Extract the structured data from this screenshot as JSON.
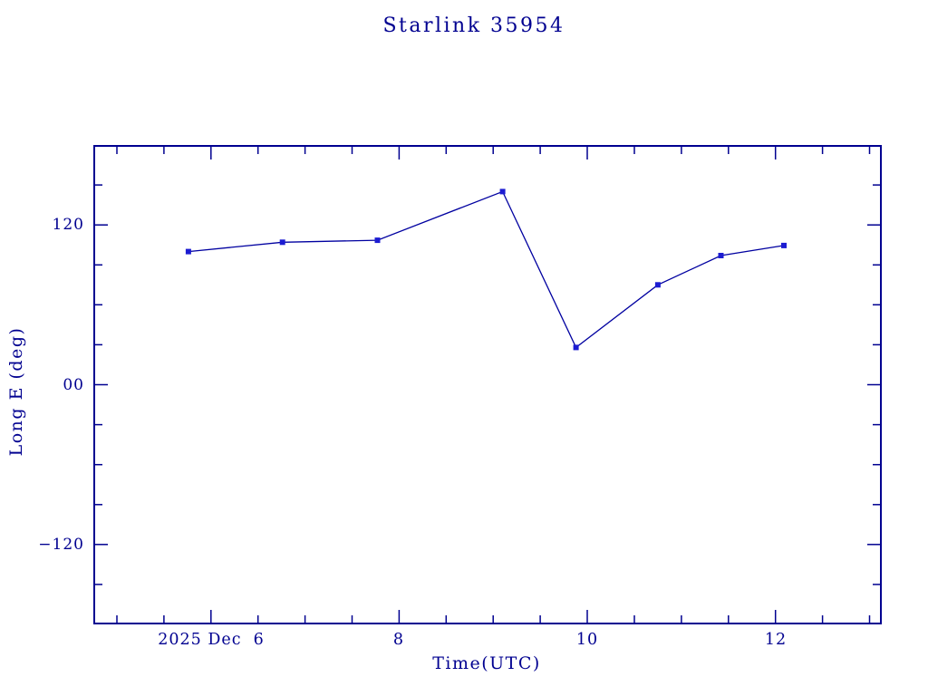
{
  "page": {
    "background": "#ffffff"
  },
  "chart_data": {
    "type": "line",
    "title": "Starlink 35954",
    "xlabel": "Time(UTC)",
    "ylabel": "Long E (deg)",
    "x_axis_unit": "day of 2025 Dec (UTC)",
    "xlim": [
      4.75,
      13.13
    ],
    "ylim": [
      -180,
      180
    ],
    "grid": false,
    "legend": false,
    "x_ticks_major": [
      {
        "value": 6,
        "label": "2025 Dec  6"
      },
      {
        "value": 8,
        "label": "8"
      },
      {
        "value": 10,
        "label": "10"
      },
      {
        "value": 12,
        "label": "12"
      }
    ],
    "x_ticks_minor": [
      5,
      5.5,
      6.5,
      7,
      7.5,
      8.5,
      9,
      9.5,
      10.5,
      11,
      11.5,
      12.5,
      13
    ],
    "y_ticks_major": [
      {
        "value": 120,
        "label": "120"
      },
      {
        "value": 0,
        "label": "00"
      },
      {
        "value": -120,
        "label": "−120"
      }
    ],
    "y_ticks_minor": [
      150,
      90,
      60,
      30,
      -30,
      -60,
      -90,
      -150
    ],
    "series": [
      {
        "name": "Long E (deg)",
        "marker": "filled-square",
        "x": [
          5.76,
          6.76,
          7.77,
          9.1,
          9.88,
          10.75,
          11.42,
          12.09
        ],
        "y": [
          100,
          107,
          108.5,
          145,
          28,
          75,
          97,
          104.5
        ]
      }
    ],
    "colors": {
      "axis": "#000090",
      "tick_labels": "#000090",
      "title": "#000090",
      "line": "#0000a0",
      "marker": "#1c1cd2"
    }
  }
}
